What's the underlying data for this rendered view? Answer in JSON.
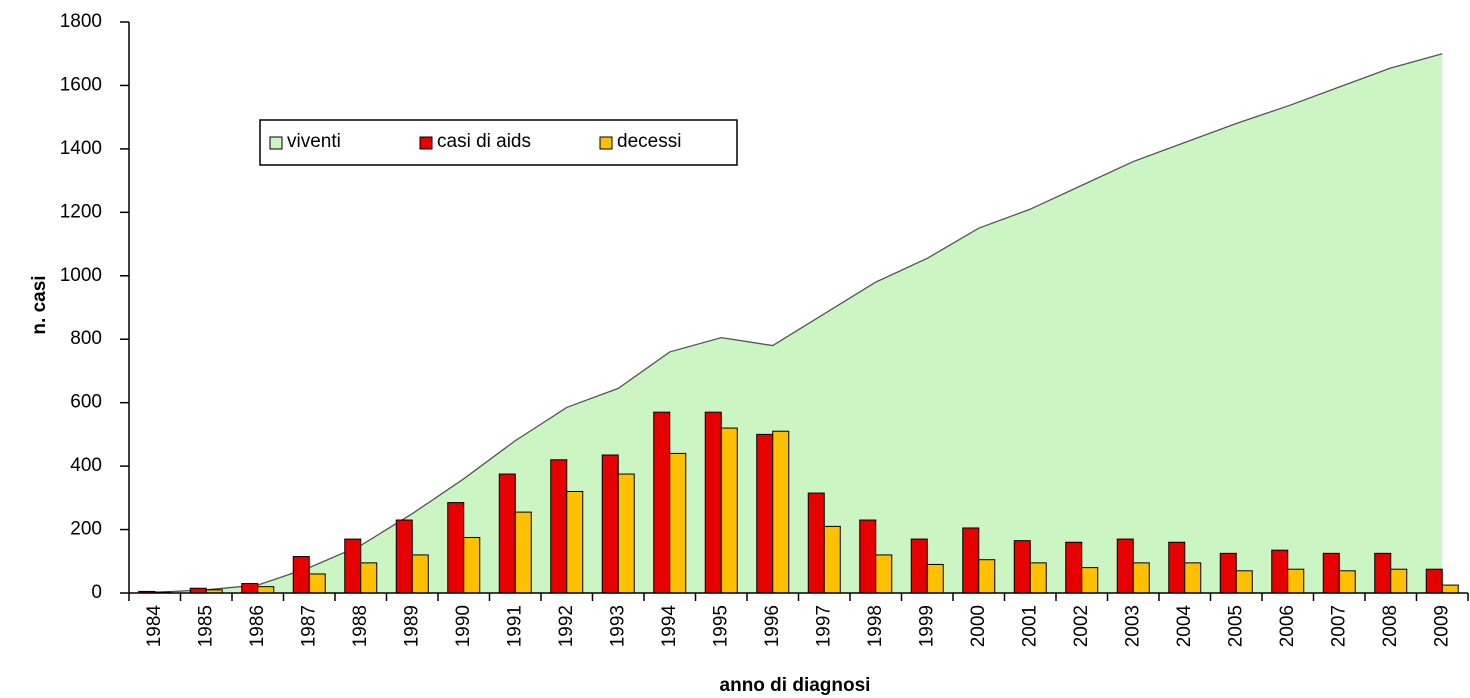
{
  "chart_data": {
    "type": "combo",
    "x_label": "anno di diagnosi",
    "y_label": "n. casi",
    "categories": [
      "1984",
      "1985",
      "1986",
      "1987",
      "1988",
      "1989",
      "1990",
      "1991",
      "1992",
      "1993",
      "1994",
      "1995",
      "1996",
      "1997",
      "1998",
      "1999",
      "2000",
      "2001",
      "2002",
      "2003",
      "2004",
      "2005",
      "2006",
      "2007",
      "2008",
      "2009"
    ],
    "series": [
      {
        "name": "viventi",
        "type": "area",
        "color": "#ccf5c4",
        "values": [
          2,
          10,
          25,
          80,
          150,
          250,
          360,
          480,
          585,
          645,
          760,
          805,
          780,
          880,
          980,
          1055,
          1150,
          1210,
          1285,
          1360,
          1420,
          1480,
          1535,
          1595,
          1655,
          1700
        ]
      },
      {
        "name": "casi di aids",
        "type": "bar",
        "color": "#e60000",
        "values": [
          5,
          15,
          30,
          115,
          170,
          230,
          285,
          375,
          420,
          435,
          570,
          570,
          500,
          315,
          230,
          170,
          205,
          165,
          160,
          170,
          160,
          125,
          135,
          125,
          125,
          75
        ]
      },
      {
        "name": "decessi",
        "type": "bar",
        "color": "#ffc000",
        "values": [
          3,
          10,
          20,
          60,
          95,
          120,
          175,
          255,
          320,
          375,
          440,
          520,
          510,
          210,
          120,
          90,
          105,
          95,
          80,
          95,
          95,
          70,
          75,
          70,
          75,
          25
        ]
      }
    ],
    "ylim": [
      0,
      1800
    ],
    "yticks": [
      0,
      200,
      400,
      600,
      800,
      1000,
      1200,
      1400,
      1600,
      1800
    ],
    "grid": false,
    "legend": "top-left"
  }
}
